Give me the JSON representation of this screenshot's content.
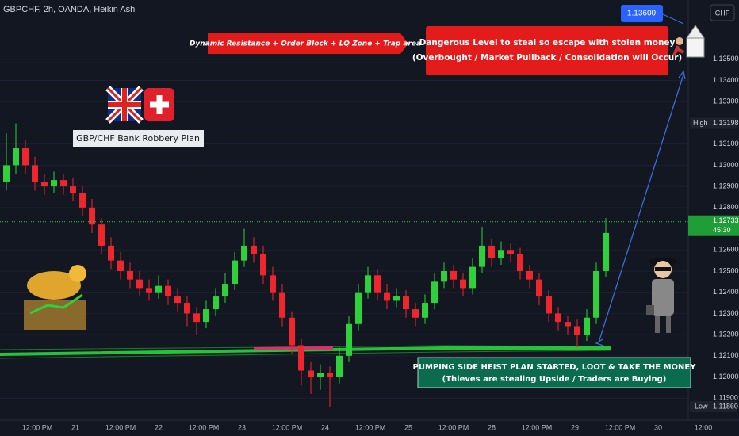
{
  "chart_data": {
    "type": "candlestick",
    "title": "GBPCHF, 2h, OANDA, Heikin Ashi",
    "currency": "CHF",
    "up_color": "#2ed03c",
    "down_color": "#f0262e",
    "ylim": [
      1.118,
      1.1378
    ],
    "yticks": [
      {
        "value": 1.135,
        "label": "1.13500"
      },
      {
        "value": 1.134,
        "label": "1.13400"
      },
      {
        "value": 1.133,
        "label": "1.13300"
      },
      {
        "value": 1.131,
        "label": "1.13100"
      },
      {
        "value": 1.13,
        "label": "1.13000"
      },
      {
        "value": 1.129,
        "label": "1.12900"
      },
      {
        "value": 1.128,
        "label": "1.12800"
      },
      {
        "value": 1.126,
        "label": "1.12600"
      },
      {
        "value": 1.125,
        "label": "1.12500"
      },
      {
        "value": 1.124,
        "label": "1.12400"
      },
      {
        "value": 1.123,
        "label": "1.12300"
      },
      {
        "value": 1.122,
        "label": "1.12200"
      },
      {
        "value": 1.121,
        "label": "1.12100"
      },
      {
        "value": 1.12,
        "label": "1.12000"
      },
      {
        "value": 1.119,
        "label": "1.11900"
      }
    ],
    "x_labels": [
      "12:00 PM",
      "21",
      "12:00 PM",
      "22",
      "12:00 PM",
      "23",
      "12:00 PM",
      "24",
      "12:00 PM",
      "25",
      "12:00 PM",
      "28",
      "12:00 PM",
      "29",
      "12:00 PM",
      "30",
      "12:00"
    ],
    "ohlc": [
      [
        1.1292,
        1.1315,
        1.1288,
        1.13
      ],
      [
        1.13,
        1.13198,
        1.1296,
        1.1308
      ],
      [
        1.1308,
        1.1312,
        1.1296,
        1.13
      ],
      [
        1.13,
        1.1304,
        1.1288,
        1.1292
      ],
      [
        1.1292,
        1.1296,
        1.1286,
        1.129
      ],
      [
        1.129,
        1.1297,
        1.1287,
        1.1293
      ],
      [
        1.1293,
        1.1296,
        1.1286,
        1.129
      ],
      [
        1.129,
        1.1294,
        1.1283,
        1.1287
      ],
      [
        1.1287,
        1.129,
        1.1276,
        1.128
      ],
      [
        1.128,
        1.1284,
        1.1268,
        1.1272
      ],
      [
        1.1272,
        1.1275,
        1.1258,
        1.1262
      ],
      [
        1.1262,
        1.1266,
        1.1251,
        1.1255
      ],
      [
        1.1255,
        1.1259,
        1.1246,
        1.125
      ],
      [
        1.125,
        1.1254,
        1.1242,
        1.1246
      ],
      [
        1.1246,
        1.125,
        1.1238,
        1.1242
      ],
      [
        1.1242,
        1.1246,
        1.1236,
        1.124
      ],
      [
        1.124,
        1.1248,
        1.1237,
        1.1243
      ],
      [
        1.1243,
        1.1246,
        1.1234,
        1.1238
      ],
      [
        1.1238,
        1.1242,
        1.1231,
        1.1235
      ],
      [
        1.1235,
        1.1238,
        1.1224,
        1.123
      ],
      [
        1.123,
        1.1233,
        1.122,
        1.1226
      ],
      [
        1.1226,
        1.1236,
        1.1223,
        1.1232
      ],
      [
        1.1232,
        1.1242,
        1.1229,
        1.1238
      ],
      [
        1.1238,
        1.1249,
        1.1235,
        1.1244
      ],
      [
        1.1244,
        1.1259,
        1.1241,
        1.1255
      ],
      [
        1.1255,
        1.127,
        1.1252,
        1.1262
      ],
      [
        1.1262,
        1.1266,
        1.1254,
        1.1258
      ],
      [
        1.1258,
        1.1262,
        1.1244,
        1.1248
      ],
      [
        1.1248,
        1.1252,
        1.1236,
        1.124
      ],
      [
        1.124,
        1.1244,
        1.1224,
        1.1228
      ],
      [
        1.1228,
        1.1231,
        1.1211,
        1.1215
      ],
      [
        1.1215,
        1.1218,
        1.1196,
        1.1203
      ],
      [
        1.1203,
        1.1207,
        1.1192,
        1.12
      ],
      [
        1.12,
        1.1206,
        1.1194,
        1.1202
      ],
      [
        1.1202,
        1.1205,
        1.1186,
        1.12
      ],
      [
        1.12,
        1.1214,
        1.1197,
        1.121
      ],
      [
        1.121,
        1.1229,
        1.1207,
        1.1225
      ],
      [
        1.1225,
        1.1244,
        1.1222,
        1.124
      ],
      [
        1.124,
        1.1252,
        1.1237,
        1.1248
      ],
      [
        1.1248,
        1.1251,
        1.1236,
        1.124
      ],
      [
        1.124,
        1.1244,
        1.1232,
        1.1236
      ],
      [
        1.1236,
        1.1242,
        1.1233,
        1.1238
      ],
      [
        1.1238,
        1.1241,
        1.1228,
        1.1232
      ],
      [
        1.1232,
        1.1235,
        1.1224,
        1.1228
      ],
      [
        1.1228,
        1.1239,
        1.1225,
        1.1235
      ],
      [
        1.1235,
        1.1249,
        1.1232,
        1.1245
      ],
      [
        1.1245,
        1.1254,
        1.1242,
        1.125
      ],
      [
        1.125,
        1.1253,
        1.1242,
        1.1246
      ],
      [
        1.1246,
        1.1249,
        1.1238,
        1.1242
      ],
      [
        1.1242,
        1.1256,
        1.1239,
        1.1252
      ],
      [
        1.1252,
        1.1271,
        1.1249,
        1.1262
      ],
      [
        1.1262,
        1.1265,
        1.1252,
        1.1256
      ],
      [
        1.1256,
        1.1264,
        1.1253,
        1.126
      ],
      [
        1.126,
        1.1263,
        1.1254,
        1.1258
      ],
      [
        1.1258,
        1.1261,
        1.1246,
        1.125
      ],
      [
        1.125,
        1.1253,
        1.1242,
        1.1246
      ],
      [
        1.1246,
        1.1249,
        1.1234,
        1.1238
      ],
      [
        1.1238,
        1.1241,
        1.1226,
        1.123
      ],
      [
        1.123,
        1.1233,
        1.1222,
        1.1226
      ],
      [
        1.1226,
        1.1229,
        1.122,
        1.1224
      ],
      [
        1.1224,
        1.1227,
        1.1214,
        1.122
      ],
      [
        1.122,
        1.1232,
        1.1217,
        1.1228
      ],
      [
        1.1228,
        1.1254,
        1.1225,
        1.125
      ],
      [
        1.125,
        1.1275,
        1.1247,
        1.1268
      ]
    ],
    "high": {
      "tag": "High",
      "value": 1.13198
    },
    "low": {
      "tag": "Low",
      "value": {
        "value": 1.1186,
        "label": "1.11860"
      }
    },
    "last": {
      "value": 1.12733,
      "countdown": "45:30"
    },
    "target": {
      "value": 1.136,
      "label": "1.13600"
    },
    "annotations": {
      "resistance": "Dynamic Resistance + Order Block + LQ Zone + Trap area",
      "danger": [
        "Dangerous Level to steal so escape with stolen money",
        "(Overbought / Market Pullback / Consolidation will Occur)"
      ],
      "plan": "GBP/CHF Bank Robbery Plan",
      "heist": [
        "PUMPING SIDE HEIST PLAN STARTED, LOOT & TAKE THE MONEY",
        "(Thieves are stealing Upside / Traders are Buying)"
      ]
    }
  }
}
